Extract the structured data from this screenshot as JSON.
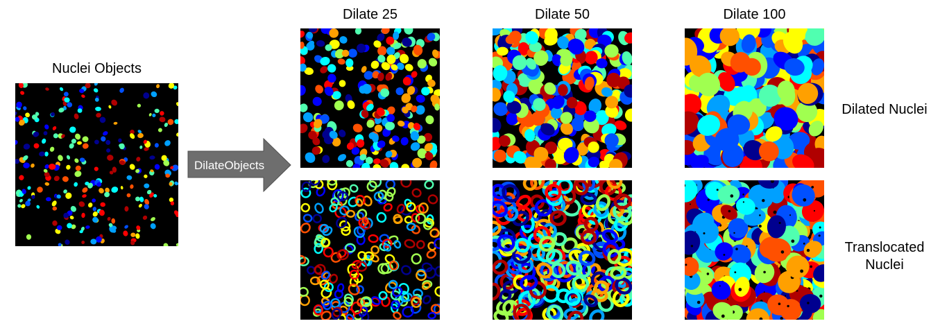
{
  "input_title": "Nuclei Objects",
  "arrow_label": "DilateObjects",
  "columns": [
    "Dilate 25",
    "Dilate 50",
    "Dilate 100"
  ],
  "rows": [
    "Dilated Nuclei",
    "Translocated Nuclei"
  ],
  "colors": {
    "background": "#000000",
    "arrow_fill": "#6e6e6e",
    "arrow_stroke": "#505050",
    "arrow_text": "#ffffff",
    "colormap": [
      "#00008f",
      "#0000ff",
      "#0050ff",
      "#00a0ff",
      "#00ffff",
      "#50ffb0",
      "#a0ff50",
      "#ffff00",
      "#ffa000",
      "#ff5000",
      "#ff0000",
      "#b00000"
    ]
  }
}
